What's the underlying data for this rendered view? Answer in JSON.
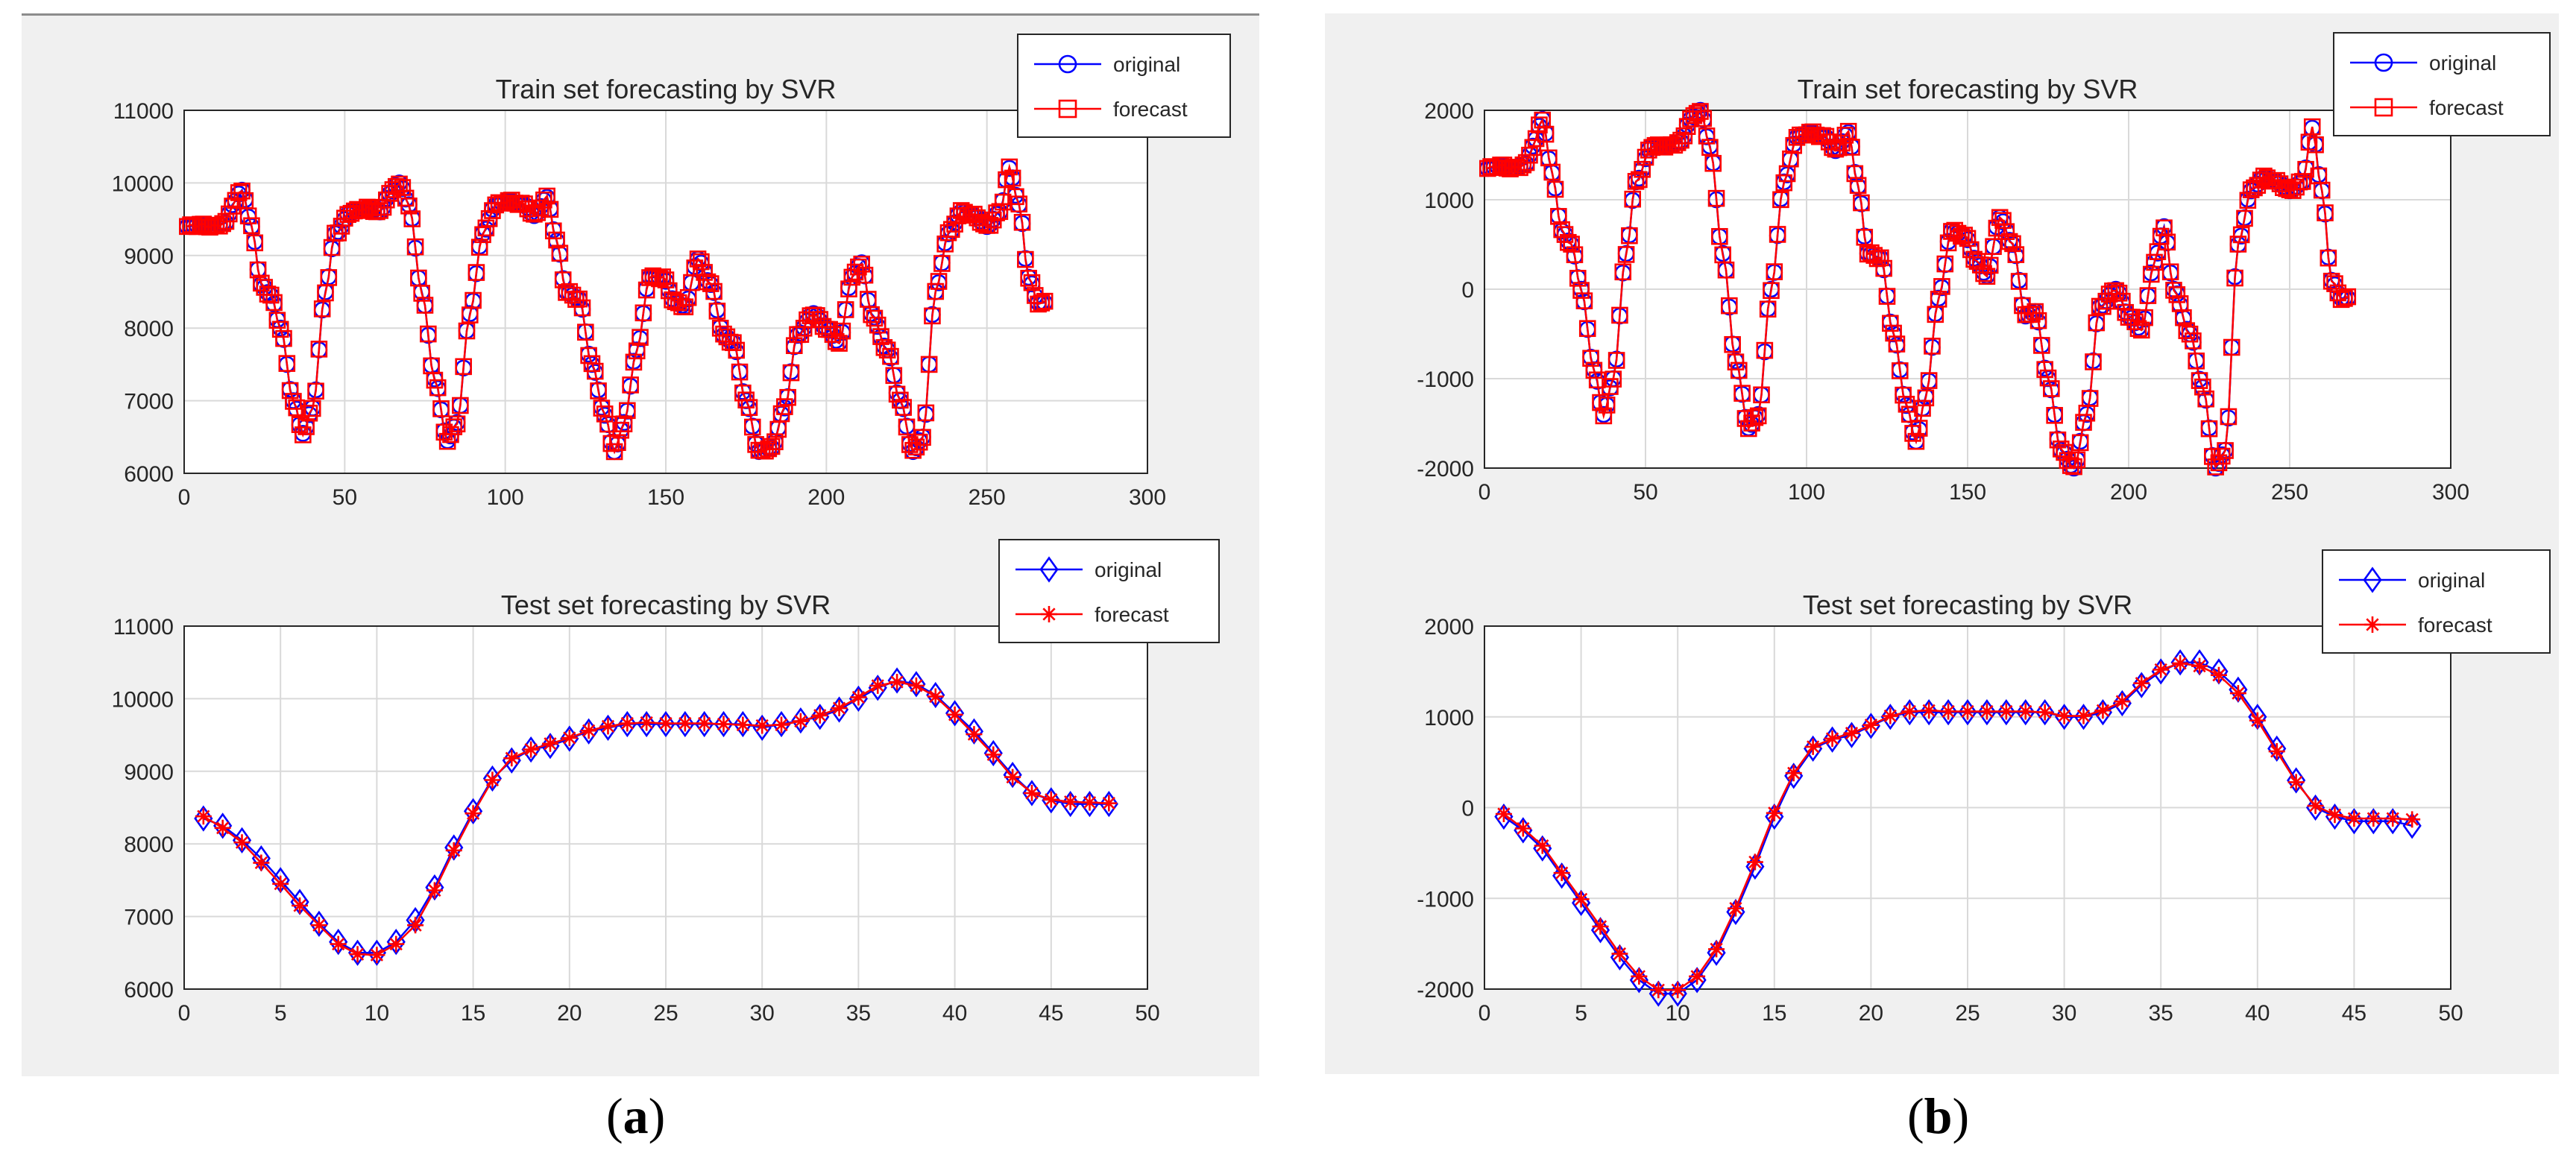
{
  "figure": {
    "labels": [
      {
        "open": "(",
        "letter": "a",
        "close": ")"
      },
      {
        "open": "(",
        "letter": "b",
        "close": ")"
      }
    ]
  },
  "colors": {
    "original": "#0000ff",
    "forecast": "#ff0000",
    "grid": "#d9d9d9",
    "panel_bg": "#f0f0f0"
  },
  "chart_data": [
    {
      "type": "line",
      "panel": "a",
      "title": "Train set forecasting by SVR",
      "xlim": [
        0,
        300
      ],
      "ylim": [
        6000,
        11000
      ],
      "xticks": [
        0,
        50,
        100,
        150,
        200,
        250,
        300
      ],
      "yticks": [
        6000,
        7000,
        8000,
        9000,
        10000,
        11000
      ],
      "grid": true,
      "legend": "top-right",
      "keyframes": [
        [
          1,
          9400
        ],
        [
          5,
          9420
        ],
        [
          9,
          9400
        ],
        [
          13,
          9450
        ],
        [
          15,
          9700
        ],
        [
          18,
          9900
        ],
        [
          21,
          9400
        ],
        [
          24,
          8600
        ],
        [
          27,
          8450
        ],
        [
          30,
          8000
        ],
        [
          34,
          7000
        ],
        [
          37,
          6550
        ],
        [
          40,
          6900
        ],
        [
          44,
          8500
        ],
        [
          47,
          9300
        ],
        [
          52,
          9600
        ],
        [
          57,
          9650
        ],
        [
          61,
          9600
        ],
        [
          64,
          9850
        ],
        [
          67,
          10000
        ],
        [
          70,
          9700
        ],
        [
          74,
          8500
        ],
        [
          78,
          7300
        ],
        [
          82,
          6450
        ],
        [
          85,
          6700
        ],
        [
          89,
          8200
        ],
        [
          93,
          9300
        ],
        [
          97,
          9700
        ],
        [
          101,
          9750
        ],
        [
          106,
          9700
        ],
        [
          109,
          9550
        ],
        [
          113,
          9800
        ],
        [
          116,
          9200
        ],
        [
          119,
          8500
        ],
        [
          123,
          8400
        ],
        [
          127,
          7500
        ],
        [
          131,
          6800
        ],
        [
          134,
          6300
        ],
        [
          137,
          6700
        ],
        [
          141,
          7700
        ],
        [
          145,
          8700
        ],
        [
          149,
          8700
        ],
        [
          153,
          8350
        ],
        [
          156,
          8300
        ],
        [
          160,
          8950
        ],
        [
          164,
          8600
        ],
        [
          168,
          7900
        ],
        [
          171,
          7800
        ],
        [
          175,
          7000
        ],
        [
          179,
          6300
        ],
        [
          183,
          6350
        ],
        [
          187,
          6900
        ],
        [
          191,
          7900
        ],
        [
          196,
          8200
        ],
        [
          200,
          8000
        ],
        [
          204,
          7800
        ],
        [
          208,
          8700
        ],
        [
          211,
          8900
        ],
        [
          214,
          8200
        ],
        [
          219,
          7700
        ],
        [
          223,
          7000
        ],
        [
          227,
          6300
        ],
        [
          230,
          6500
        ],
        [
          234,
          8500
        ],
        [
          238,
          9300
        ],
        [
          242,
          9600
        ],
        [
          246,
          9550
        ],
        [
          250,
          9400
        ],
        [
          254,
          9600
        ],
        [
          257,
          10200
        ],
        [
          260,
          9700
        ],
        [
          263,
          8700
        ],
        [
          266,
          8350
        ],
        [
          268,
          8350
        ]
      ],
      "series": [
        {
          "name": "original",
          "marker": "circle"
        },
        {
          "name": "forecast",
          "marker": "square"
        }
      ]
    },
    {
      "type": "line",
      "panel": "a",
      "title": "Test set forecasting by SVR",
      "xlim": [
        0,
        50
      ],
      "ylim": [
        6000,
        11000
      ],
      "xticks": [
        0,
        5,
        10,
        15,
        20,
        25,
        30,
        35,
        40,
        45,
        50
      ],
      "yticks": [
        6000,
        7000,
        8000,
        9000,
        10000,
        11000
      ],
      "grid": true,
      "legend": "top-right",
      "x": [
        1,
        2,
        3,
        4,
        5,
        6,
        7,
        8,
        9,
        10,
        11,
        12,
        13,
        14,
        15,
        16,
        17,
        18,
        19,
        20,
        21,
        22,
        23,
        24,
        25,
        26,
        27,
        28,
        29,
        30,
        31,
        32,
        33,
        34,
        35,
        36,
        37,
        38,
        39,
        40,
        41,
        42,
        43,
        44,
        45,
        46,
        47,
        48
      ],
      "series": [
        {
          "name": "original",
          "marker": "diamond",
          "values": [
            8350,
            8250,
            8050,
            7800,
            7500,
            7200,
            6900,
            6650,
            6500,
            6500,
            6650,
            6950,
            7400,
            7950,
            8450,
            8900,
            9150,
            9300,
            9350,
            9450,
            9550,
            9600,
            9650,
            9650,
            9650,
            9650,
            9650,
            9650,
            9650,
            9600,
            9650,
            9700,
            9750,
            9850,
            10000,
            10150,
            10250,
            10200,
            10050,
            9800,
            9550,
            9250,
            8950,
            8700,
            8600,
            8550,
            8550,
            8550
          ]
        },
        {
          "name": "forecast",
          "marker": "star",
          "values": [
            8380,
            8220,
            8020,
            7740,
            7450,
            7150,
            6880,
            6620,
            6480,
            6470,
            6620,
            6880,
            7360,
            7910,
            8420,
            8880,
            9180,
            9300,
            9380,
            9460,
            9560,
            9620,
            9660,
            9670,
            9660,
            9660,
            9660,
            9650,
            9640,
            9630,
            9640,
            9690,
            9770,
            9870,
            10020,
            10180,
            10230,
            10180,
            10030,
            9780,
            9510,
            9230,
            8920,
            8700,
            8610,
            8580,
            8570,
            8560
          ]
        }
      ]
    },
    {
      "type": "line",
      "panel": "b",
      "title": "Train set forecasting by SVR",
      "xlim": [
        0,
        300
      ],
      "ylim": [
        -2000,
        2000
      ],
      "xticks": [
        0,
        50,
        100,
        150,
        200,
        250,
        300
      ],
      "yticks": [
        -2000,
        -1000,
        0,
        1000,
        2000
      ],
      "grid": true,
      "legend": "top-right",
      "keyframes": [
        [
          1,
          1350
        ],
        [
          5,
          1380
        ],
        [
          9,
          1350
        ],
        [
          13,
          1400
        ],
        [
          15,
          1600
        ],
        [
          18,
          1900
        ],
        [
          21,
          1300
        ],
        [
          24,
          650
        ],
        [
          27,
          500
        ],
        [
          30,
          0
        ],
        [
          34,
          -900
        ],
        [
          37,
          -1400
        ],
        [
          40,
          -1000
        ],
        [
          44,
          400
        ],
        [
          47,
          1200
        ],
        [
          52,
          1600
        ],
        [
          57,
          1600
        ],
        [
          61,
          1650
        ],
        [
          64,
          1900
        ],
        [
          67,
          2000
        ],
        [
          70,
          1600
        ],
        [
          74,
          400
        ],
        [
          78,
          -800
        ],
        [
          82,
          -1550
        ],
        [
          85,
          -1400
        ],
        [
          89,
          0
        ],
        [
          93,
          1200
        ],
        [
          97,
          1700
        ],
        [
          101,
          1750
        ],
        [
          106,
          1700
        ],
        [
          109,
          1550
        ],
        [
          113,
          1750
        ],
        [
          116,
          1150
        ],
        [
          119,
          400
        ],
        [
          123,
          350
        ],
        [
          127,
          -500
        ],
        [
          131,
          -1300
        ],
        [
          134,
          -1700
        ],
        [
          137,
          -1200
        ],
        [
          141,
          -100
        ],
        [
          145,
          650
        ],
        [
          149,
          600
        ],
        [
          153,
          300
        ],
        [
          156,
          150
        ],
        [
          160,
          800
        ],
        [
          164,
          500
        ],
        [
          168,
          -300
        ],
        [
          171,
          -250
        ],
        [
          175,
          -1000
        ],
        [
          179,
          -1800
        ],
        [
          183,
          -2000
        ],
        [
          187,
          -1400
        ],
        [
          191,
          -200
        ],
        [
          196,
          0
        ],
        [
          200,
          -300
        ],
        [
          204,
          -450
        ],
        [
          208,
          300
        ],
        [
          211,
          700
        ],
        [
          214,
          0
        ],
        [
          219,
          -500
        ],
        [
          223,
          -1100
        ],
        [
          227,
          -2000
        ],
        [
          230,
          -1800
        ],
        [
          234,
          500
        ],
        [
          238,
          1100
        ],
        [
          242,
          1250
        ],
        [
          246,
          1200
        ],
        [
          250,
          1100
        ],
        [
          254,
          1200
        ],
        [
          257,
          1800
        ],
        [
          260,
          1100
        ],
        [
          263,
          100
        ],
        [
          266,
          -100
        ],
        [
          268,
          -100
        ]
      ],
      "series": [
        {
          "name": "original",
          "marker": "circle"
        },
        {
          "name": "forecast",
          "marker": "square"
        }
      ]
    },
    {
      "type": "line",
      "panel": "b",
      "title": "Test set forecasting by SVR",
      "xlim": [
        0,
        50
      ],
      "ylim": [
        -2000,
        2000
      ],
      "xticks": [
        0,
        5,
        10,
        15,
        20,
        25,
        30,
        35,
        40,
        45,
        50
      ],
      "yticks": [
        -2000,
        -1000,
        0,
        1000,
        2000
      ],
      "grid": true,
      "legend": "top-right",
      "x": [
        1,
        2,
        3,
        4,
        5,
        6,
        7,
        8,
        9,
        10,
        11,
        12,
        13,
        14,
        15,
        16,
        17,
        18,
        19,
        20,
        21,
        22,
        23,
        24,
        25,
        26,
        27,
        28,
        29,
        30,
        31,
        32,
        33,
        34,
        35,
        36,
        37,
        38,
        39,
        40,
        41,
        42,
        43,
        44,
        45,
        46,
        47,
        48
      ],
      "series": [
        {
          "name": "original",
          "marker": "diamond",
          "values": [
            -100,
            -250,
            -450,
            -750,
            -1050,
            -1350,
            -1650,
            -1900,
            -2050,
            -2050,
            -1900,
            -1600,
            -1150,
            -650,
            -100,
            350,
            650,
            750,
            800,
            900,
            1000,
            1050,
            1050,
            1050,
            1050,
            1050,
            1050,
            1050,
            1050,
            1000,
            1000,
            1050,
            1150,
            1350,
            1500,
            1600,
            1600,
            1500,
            1300,
            1000,
            650,
            300,
            0,
            -100,
            -150,
            -150,
            -150,
            -200
          ]
        },
        {
          "name": "forecast",
          "marker": "star",
          "values": [
            -70,
            -230,
            -420,
            -720,
            -1010,
            -1310,
            -1610,
            -1860,
            -2010,
            -2010,
            -1860,
            -1560,
            -1110,
            -600,
            -60,
            380,
            670,
            760,
            820,
            910,
            1010,
            1060,
            1070,
            1060,
            1060,
            1060,
            1060,
            1060,
            1050,
            1010,
            1010,
            1070,
            1170,
            1370,
            1520,
            1590,
            1560,
            1460,
            1260,
            960,
            620,
            280,
            20,
            -80,
            -120,
            -120,
            -120,
            -130
          ]
        }
      ]
    }
  ]
}
